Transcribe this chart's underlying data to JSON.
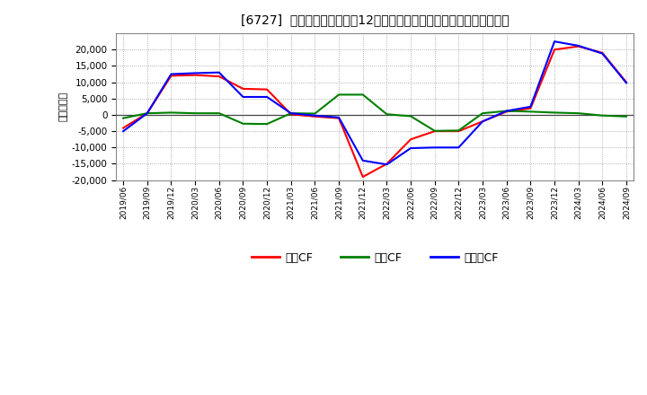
{
  "title": "[6727]  キャッシュフローの12か月移動合計の対前年同期増減額の推移",
  "ylabel": "（百万円）",
  "background_color": "#ffffff",
  "plot_bg_color": "#ffffff",
  "grid_color": "#aaaaaa",
  "x_labels": [
    "2019/06",
    "2019/09",
    "2019/12",
    "2020/03",
    "2020/06",
    "2020/09",
    "2020/12",
    "2021/03",
    "2021/06",
    "2021/09",
    "2021/12",
    "2022/03",
    "2022/06",
    "2022/09",
    "2022/12",
    "2023/03",
    "2023/06",
    "2023/09",
    "2023/12",
    "2024/03",
    "2024/06",
    "2024/09"
  ],
  "operating_cf": [
    -4000,
    500,
    12000,
    12200,
    11800,
    8000,
    7800,
    200,
    -500,
    -1000,
    -19000,
    -15000,
    -7500,
    -5000,
    -5000,
    -2000,
    1000,
    2000,
    20000,
    21000,
    19000,
    10000
  ],
  "investing_cf": [
    -1000,
    500,
    700,
    500,
    500,
    -2700,
    -2800,
    500,
    400,
    6200,
    6200,
    200,
    -400,
    -4900,
    -4800,
    500,
    1200,
    1000,
    700,
    500,
    -200,
    -500
  ],
  "free_cf": [
    -5000,
    500,
    12500,
    12800,
    13000,
    5500,
    5500,
    500,
    -200,
    -800,
    -14000,
    -15200,
    -10200,
    -10000,
    -10000,
    -2000,
    1200,
    2500,
    22500,
    21200,
    18800,
    9800
  ],
  "ylim": [
    -20000,
    25000
  ],
  "yticks": [
    -20000,
    -15000,
    -10000,
    -5000,
    0,
    5000,
    10000,
    15000,
    20000
  ],
  "line_colors": {
    "operating": "#ff0000",
    "investing": "#008000",
    "free": "#0000ff"
  },
  "legend_labels": [
    "営業CF",
    "投資CF",
    "フリーCF"
  ]
}
